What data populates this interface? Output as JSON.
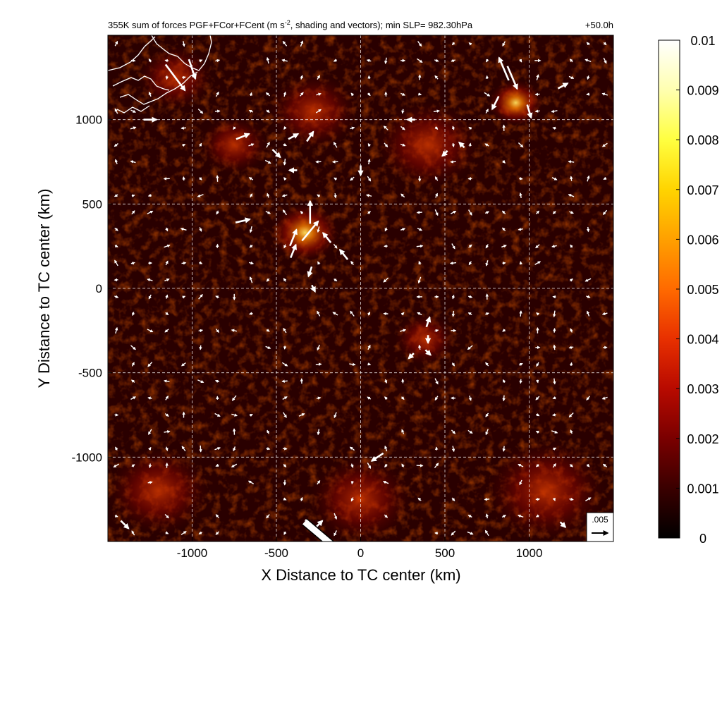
{
  "chart_data": {
    "type": "heatmap",
    "title": "355K sum of forces PGF+FCor+FCent (m s",
    "title_exponent": "-2",
    "title_suffix": ", shading and vectors); min SLP= 982.30hPa",
    "time_label": "+50.0h",
    "xlabel": "X Distance to TC center (km)",
    "ylabel": "Y Distance to TC center (km)",
    "xlim": [
      -1500,
      1500
    ],
    "ylim": [
      -1500,
      1500
    ],
    "x_ticks": [
      -1000,
      -500,
      0,
      500,
      1000
    ],
    "x_tick_labels": [
      "-1000",
      "-500",
      "0",
      "500",
      "1000"
    ],
    "y_ticks": [
      -1000,
      -500,
      0,
      500,
      1000
    ],
    "y_tick_labels": [
      "-1000",
      "-500",
      "0",
      "500",
      "1000"
    ],
    "grid": true,
    "colorbar": {
      "min": 0,
      "max": 0.01,
      "ticks": [
        0,
        0.001,
        0.002,
        0.003,
        0.004,
        0.005,
        0.006,
        0.007,
        0.008,
        0.009,
        0.01
      ],
      "tick_labels": [
        "0",
        "0.001",
        "0.002",
        "0.003",
        "0.004",
        "0.005",
        "0.006",
        "0.007",
        "0.008",
        "0.009",
        "0.01"
      ],
      "colors": [
        "#000000",
        "#3a0000",
        "#7a0000",
        "#b80a00",
        "#e83000",
        "#ff6a00",
        "#ffa000",
        "#ffd400",
        "#ffff40",
        "#ffffb0",
        "#ffffff"
      ]
    },
    "reference_vector": {
      "label": ".005",
      "magnitude": 0.005
    },
    "field_hotspots": [
      {
        "x": -330,
        "y": 330,
        "value": 0.007,
        "radius_km": 200
      },
      {
        "x": 920,
        "y": 1100,
        "value": 0.006,
        "radius_km": 160
      },
      {
        "x": -280,
        "y": 1050,
        "value": 0.0035,
        "radius_km": 260
      },
      {
        "x": -1100,
        "y": 1250,
        "value": 0.004,
        "radius_km": 220
      },
      {
        "x": 380,
        "y": -300,
        "value": 0.003,
        "radius_km": 180
      },
      {
        "x": 1100,
        "y": -1200,
        "value": 0.003,
        "radius_km": 350
      },
      {
        "x": -1200,
        "y": -1200,
        "value": 0.0025,
        "radius_km": 300
      },
      {
        "x": 0,
        "y": -1250,
        "value": 0.003,
        "radius_km": 300
      },
      {
        "x": 400,
        "y": 850,
        "value": 0.0025,
        "radius_km": 300
      },
      {
        "x": -750,
        "y": 850,
        "value": 0.003,
        "radius_km": 200
      }
    ],
    "vectors": [
      {
        "x": -1100,
        "y": 1250,
        "u": 0.003,
        "v": -0.004
      },
      {
        "x": -1000,
        "y": 1300,
        "u": 0.001,
        "v": -0.003
      },
      {
        "x": 900,
        "y": 1250,
        "u": 0.0015,
        "v": -0.0035
      },
      {
        "x": 850,
        "y": 1300,
        "u": -0.0015,
        "v": 0.0035
      },
      {
        "x": 1000,
        "y": 1050,
        "u": 0.0006,
        "v": -0.002
      },
      {
        "x": 800,
        "y": 1100,
        "u": -0.001,
        "v": -0.002
      },
      {
        "x": 1200,
        "y": 1200,
        "u": 0.0015,
        "v": 0.0008
      },
      {
        "x": -1250,
        "y": 1000,
        "u": 0.002,
        "v": 0
      },
      {
        "x": -700,
        "y": 900,
        "u": 0.002,
        "v": 0.0008
      },
      {
        "x": -400,
        "y": 900,
        "u": 0.0015,
        "v": 0.0008
      },
      {
        "x": -300,
        "y": 900,
        "u": 0.001,
        "v": 0.0015
      },
      {
        "x": -500,
        "y": 800,
        "u": 0.0012,
        "v": -0.0012
      },
      {
        "x": -300,
        "y": 450,
        "u": 0,
        "v": 0.0035
      },
      {
        "x": -300,
        "y": 340,
        "u": 0.0025,
        "v": 0.003
      },
      {
        "x": -400,
        "y": 300,
        "u": 0.001,
        "v": 0.0025
      },
      {
        "x": -400,
        "y": 220,
        "u": 0.0008,
        "v": 0.002
      },
      {
        "x": -700,
        "y": 400,
        "u": 0.0022,
        "v": 0.0005
      },
      {
        "x": -200,
        "y": 300,
        "u": -0.0012,
        "v": 0.0015
      },
      {
        "x": -100,
        "y": 200,
        "u": -0.0012,
        "v": 0.0015
      },
      {
        "x": -300,
        "y": 100,
        "u": -0.0005,
        "v": -0.0015
      },
      {
        "x": -280,
        "y": 0,
        "u": 0.0005,
        "v": -0.001
      },
      {
        "x": -400,
        "y": 700,
        "u": -0.0012,
        "v": 0
      },
      {
        "x": 0,
        "y": 700,
        "u": 0,
        "v": -0.0015
      },
      {
        "x": 400,
        "y": -200,
        "u": 0.0005,
        "v": 0.0015
      },
      {
        "x": 400,
        "y": -300,
        "u": 0,
        "v": -0.0012
      },
      {
        "x": 300,
        "y": -400,
        "u": -0.0008,
        "v": -0.0008
      },
      {
        "x": 400,
        "y": -380,
        "u": 0.0008,
        "v": -0.0008
      },
      {
        "x": 100,
        "y": -1000,
        "u": -0.0018,
        "v": -0.0012
      },
      {
        "x": -300,
        "y": -1400,
        "u": 0.0015,
        "v": -0.0015
      },
      {
        "x": -250,
        "y": -1400,
        "u": 0.0012,
        "v": 0.0012
      },
      {
        "x": 300,
        "y": 1000,
        "u": -0.0012,
        "v": 0
      },
      {
        "x": 500,
        "y": 800,
        "u": -0.0008,
        "v": -0.0008
      },
      {
        "x": 600,
        "y": 850,
        "u": -0.0008,
        "v": 0.0008
      },
      {
        "x": -1400,
        "y": -1400,
        "u": 0.0012,
        "v": -0.0012
      },
      {
        "x": 1200,
        "y": -1400,
        "u": 0.0008,
        "v": -0.0008
      }
    ],
    "coastline_note": "white coastline in upper-left corner",
    "large_vector_overlay": true
  }
}
